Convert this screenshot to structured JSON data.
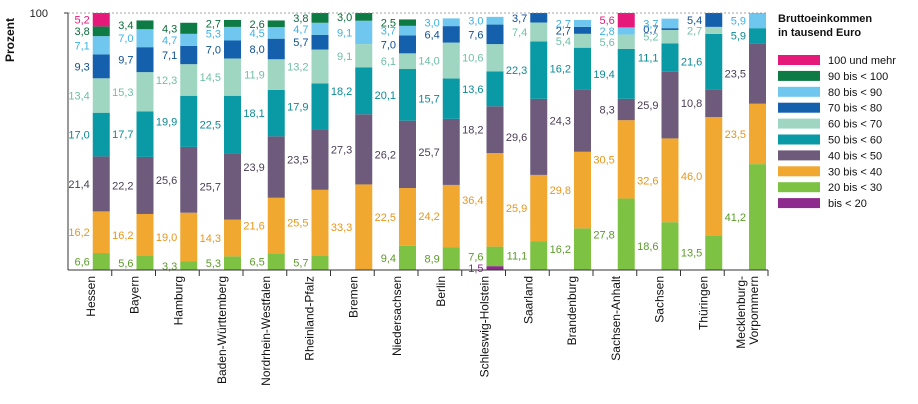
{
  "chart_data": {
    "type": "bar",
    "stacked": true,
    "orientation": "vertical",
    "ylabel": "Prozent",
    "ylim": [
      0,
      100
    ],
    "yticks": [
      "100"
    ],
    "legend_title": "Bruttoeinkommen in tausend Euro",
    "legend_position": "right",
    "categories": [
      "Hessen",
      "Bayern",
      "Hamburg",
      "Baden-Württemberg",
      "Nordrhein-Westfalen",
      "Rheinland-Pfalz",
      "Bremen",
      "Niedersachsen",
      "Berlin",
      "Schleswig-Holstein",
      "Saarland",
      "Brandenburg",
      "Sachsen-Anhalt",
      "Sachsen",
      "Thüringen",
      "Mecklenburg-Vorpommern"
    ],
    "category_labels": [
      [
        "Hessen"
      ],
      [
        "Bayern"
      ],
      [
        "Hamburg"
      ],
      [
        "Baden-Württemberg"
      ],
      [
        "Nordrhein-Westfalen"
      ],
      [
        "Rheinland-Pfalz"
      ],
      [
        "Bremen"
      ],
      [
        "Niedersachsen"
      ],
      [
        "Berlin"
      ],
      [
        "Schleswig-Holstein"
      ],
      [
        "Saarland"
      ],
      [
        "Brandenburg"
      ],
      [
        "Sachsen-Anhalt"
      ],
      [
        "Sachsen"
      ],
      [
        "Thüringen"
      ],
      [
        "Mecklenburg-",
        "Vorpommern"
      ]
    ],
    "series": [
      {
        "name": "bis < 20",
        "color": "#8e2a8e",
        "label_color": "#8e2a8e",
        "values": [
          0,
          0,
          0,
          0,
          0,
          0,
          0,
          0,
          0,
          1.5,
          0,
          0,
          0,
          0,
          0,
          0
        ]
      },
      {
        "name": "20 bis < 30",
        "color": "#7dc242",
        "label_color": "#5a9a2a",
        "values": [
          6.6,
          5.6,
          3.3,
          5.3,
          6.5,
          5.7,
          0,
          9.4,
          8.9,
          7.6,
          11.1,
          16.2,
          27.8,
          18.6,
          13.5,
          41.2
        ]
      },
      {
        "name": "30 bis < 40",
        "color": "#f0a830",
        "label_color": "#e8961a",
        "values": [
          16.2,
          16.2,
          19.0,
          14.3,
          21.6,
          25.5,
          33.3,
          22.5,
          24.2,
          36.4,
          25.9,
          29.8,
          30.5,
          32.6,
          46.0,
          23.5
        ]
      },
      {
        "name": "40 bis < 50",
        "color": "#6e5b7b",
        "label_color": "#4a3d54",
        "values": [
          21.4,
          22.2,
          25.6,
          25.7,
          23.9,
          23.5,
          27.3,
          26.2,
          25.7,
          18.2,
          29.6,
          24.3,
          8.3,
          25.9,
          10.8,
          23.5
        ]
      },
      {
        "name": "50 bis < 60",
        "color": "#0a9aa5",
        "label_color": "#0a8a95",
        "values": [
          17.0,
          17.7,
          19.9,
          22.5,
          18.1,
          17.9,
          18.2,
          20.1,
          15.7,
          13.6,
          22.3,
          16.2,
          19.4,
          11.1,
          21.6,
          5.9
        ]
      },
      {
        "name": "60 bis < 70",
        "color": "#9fd6c2",
        "label_color": "#6fbfa6",
        "values": [
          13.4,
          15.3,
          12.3,
          14.5,
          11.9,
          13.2,
          9.1,
          6.1,
          14.0,
          10.6,
          7.4,
          5.4,
          5.6,
          5.2,
          2.7,
          0
        ]
      },
      {
        "name": "70 bis < 80",
        "color": "#1560ad",
        "label_color": "#0d4f94",
        "values": [
          9.3,
          9.7,
          7.1,
          7.0,
          8.0,
          5.7,
          0,
          7.0,
          6.4,
          7.6,
          3.7,
          2.7,
          0,
          0.7,
          5.4,
          0
        ]
      },
      {
        "name": "80 bis < 90",
        "color": "#6fc6ef",
        "label_color": "#3fb0e4",
        "values": [
          7.1,
          7.0,
          4.7,
          5.3,
          4.5,
          4.7,
          9.1,
          3.7,
          3.0,
          3.0,
          0,
          2.7,
          2.8,
          3.7,
          0,
          5.9
        ]
      },
      {
        "name": "90 bis < 100",
        "color": "#0e7a44",
        "label_color": "#0b6a3a",
        "values": [
          3.8,
          3.4,
          4.3,
          2.7,
          2.6,
          3.8,
          3.0,
          2.5,
          0,
          0,
          0,
          0,
          0,
          0,
          0,
          0
        ]
      },
      {
        "name": "100 und mehr",
        "color": "#e4197a",
        "label_color": "#e4197a",
        "values": [
          5.2,
          0,
          0,
          0,
          0,
          0,
          0,
          0,
          0,
          0,
          0,
          0,
          5.6,
          0,
          0,
          0
        ]
      }
    ],
    "value_labels": [
      [
        null,
        "6,6",
        "16,2",
        "21,4",
        "17,0",
        "13,4",
        "9,3",
        "7,1",
        "3,8",
        "5,2"
      ],
      [
        null,
        "5,6",
        "16,2",
        "22,2",
        "17,7",
        "15,3",
        "9,7",
        "7,0",
        "3,4",
        null
      ],
      [
        null,
        "3,3",
        "19,0",
        "25,6",
        "19,9",
        "12,3",
        "7,1",
        "4,7",
        "4,3",
        null
      ],
      [
        null,
        "5,3",
        "14,3",
        "25,7",
        "22,5",
        "14,5",
        "7,0",
        "5,3",
        "2,7",
        null
      ],
      [
        null,
        "6,5",
        "21,6",
        "23,9",
        "18,1",
        "11,9",
        "8,0",
        "4,5",
        "2,6",
        null
      ],
      [
        null,
        "5,7",
        "25,5",
        "23,5",
        "17,9",
        "13,2",
        "5,7",
        "4,7",
        "3,8",
        null
      ],
      [
        null,
        null,
        "33,3",
        "27,3",
        "18,2",
        "9,1",
        null,
        "9,1",
        "3,0",
        null
      ],
      [
        null,
        "9,4",
        "22,5",
        "26,2",
        "20,1",
        "6,1",
        "7,0",
        "3,7",
        "2,5",
        null
      ],
      [
        null,
        "8,9",
        "24,2",
        "25,7",
        "15,7",
        "14,0",
        "6,4",
        "3,0",
        null,
        null
      ],
      [
        "1,5",
        "7,6",
        "36,4",
        "18,2",
        "13,6",
        "10,6",
        "7,6",
        "3,0",
        null,
        null
      ],
      [
        null,
        "11,1",
        "25,9",
        "29,6",
        "22,3",
        "7,4",
        "3,7",
        null,
        null,
        null
      ],
      [
        null,
        "16,2",
        "29,8",
        "24,3",
        "16,2",
        "5,4",
        "2,7",
        "2,7",
        null,
        null
      ],
      [
        null,
        "27,8",
        "30,5",
        "8,3",
        "19,4",
        "5,6",
        null,
        "2,8",
        null,
        "5,6"
      ],
      [
        null,
        "18,6",
        "32,6",
        "25,9",
        "11,1",
        "5,2",
        "0,7",
        "3,7",
        null,
        null
      ],
      [
        null,
        "13,5",
        "46,0",
        "10,8",
        "21,6",
        "2,7",
        "5,4",
        null,
        null,
        null
      ],
      [
        null,
        "41,2",
        "23,5",
        "23,5",
        "5,9",
        null,
        null,
        "5,9",
        null,
        null
      ]
    ],
    "legend_order": [
      "100 und mehr",
      "90 bis < 100",
      "80 bis < 90",
      "70 bis < 80",
      "60 bis < 70",
      "50 bis < 60",
      "40 bis < 50",
      "30 bis < 40",
      "20 bis < 30",
      "bis < 20"
    ],
    "legend_title_lines": [
      "Bruttoeinkommen",
      "in tausend Euro"
    ],
    "grid": false
  }
}
